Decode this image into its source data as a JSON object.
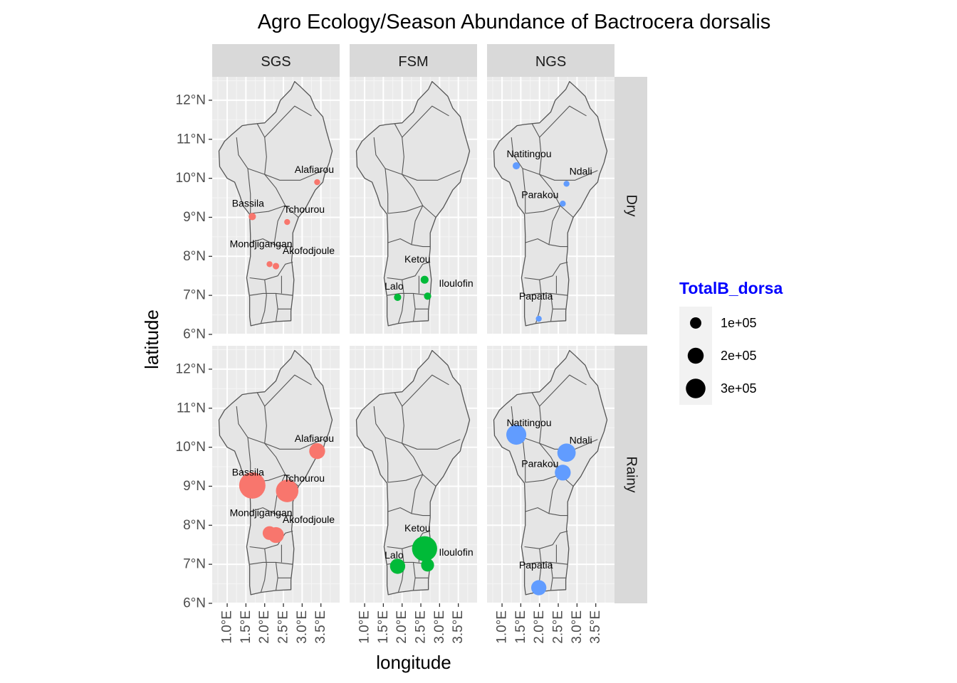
{
  "chart_data": {
    "type": "scatter",
    "title": "Agro Ecology/Season Abundance of Bactrocera dorsalis",
    "xlabel": "longitude",
    "ylabel": "latitude",
    "xlim": [
      0.6,
      4.0
    ],
    "ylim": [
      6.0,
      12.6
    ],
    "x_ticks": [
      1.0,
      1.5,
      2.0,
      2.5,
      3.0,
      3.5
    ],
    "x_tick_labels": [
      "1.0°E",
      "1.5°E",
      "2.0°E",
      "2.5°E",
      "3.0°E",
      "3.5°E"
    ],
    "y_ticks": [
      6,
      7,
      8,
      9,
      10,
      11,
      12
    ],
    "y_tick_labels": [
      "6°N",
      "7°N",
      "8°N",
      "9°N",
      "10°N",
      "11°N",
      "12°N"
    ],
    "columns": [
      "SGS",
      "FSM",
      "NGS"
    ],
    "rows": [
      "Dry",
      "Rainy"
    ],
    "colors": {
      "SGS": "#f8766d",
      "FSM": "#00ba38",
      "NGS": "#619cff"
    },
    "legend": {
      "title": "TotalB_dorsa",
      "placement": "right",
      "entries": [
        {
          "label": "1e+05",
          "value": 100000
        },
        {
          "label": "2e+05",
          "value": 200000
        },
        {
          "label": "3e+05",
          "value": 300000
        }
      ]
    },
    "panels": [
      {
        "column": "SGS",
        "row": "Dry",
        "points": [
          {
            "site": "Alafiarou",
            "lon": 3.4,
            "lat": 9.9,
            "total": 5000
          },
          {
            "site": "Bassila",
            "lon": 1.67,
            "lat": 9.02,
            "total": 25000
          },
          {
            "site": "Tchourou",
            "lon": 2.6,
            "lat": 8.88,
            "total": 10000
          },
          {
            "site": "Mondjigangan",
            "lon": 2.13,
            "lat": 7.8,
            "total": 4000
          },
          {
            "site": "Akofodjoule",
            "lon": 2.3,
            "lat": 7.75,
            "total": 20000
          }
        ]
      },
      {
        "column": "FSM",
        "row": "Dry",
        "points": [
          {
            "site": "Ketou",
            "lon": 2.6,
            "lat": 7.4,
            "total": 30000
          },
          {
            "site": "Lalo",
            "lon": 1.88,
            "lat": 6.95,
            "total": 25000
          },
          {
            "site": "Iloulofin",
            "lon": 2.68,
            "lat": 6.98,
            "total": 25000
          }
        ]
      },
      {
        "column": "NGS",
        "row": "Dry",
        "points": [
          {
            "site": "Natitingou",
            "lon": 1.38,
            "lat": 10.32,
            "total": 25000
          },
          {
            "site": "Ndali",
            "lon": 2.72,
            "lat": 9.86,
            "total": 15000
          },
          {
            "site": "Parakou",
            "lon": 2.62,
            "lat": 9.35,
            "total": 10000
          },
          {
            "site": "Papatia",
            "lon": 1.98,
            "lat": 6.4,
            "total": 6000
          }
        ]
      },
      {
        "column": "SGS",
        "row": "Rainy",
        "points": [
          {
            "site": "Alafiarou",
            "lon": 3.4,
            "lat": 9.9,
            "total": 120000
          },
          {
            "site": "Bassila",
            "lon": 1.67,
            "lat": 9.02,
            "total": 330000
          },
          {
            "site": "Tchourou",
            "lon": 2.6,
            "lat": 8.88,
            "total": 240000
          },
          {
            "site": "Mondjigangan",
            "lon": 2.13,
            "lat": 7.8,
            "total": 90000
          },
          {
            "site": "Akofodjoule",
            "lon": 2.3,
            "lat": 7.75,
            "total": 120000
          }
        ]
      },
      {
        "column": "FSM",
        "row": "Rainy",
        "points": [
          {
            "site": "Ketou",
            "lon": 2.6,
            "lat": 7.4,
            "total": 300000
          },
          {
            "site": "Lalo",
            "lon": 1.88,
            "lat": 6.95,
            "total": 110000
          },
          {
            "site": "Iloulofin",
            "lon": 2.68,
            "lat": 6.98,
            "total": 80000
          }
        ]
      },
      {
        "column": "NGS",
        "row": "Rainy",
        "points": [
          {
            "site": "Natitingou",
            "lon": 1.38,
            "lat": 10.32,
            "total": 190000
          },
          {
            "site": "Ndali",
            "lon": 2.72,
            "lat": 9.86,
            "total": 160000
          },
          {
            "site": "Parakou",
            "lon": 2.62,
            "lat": 9.35,
            "total": 120000
          },
          {
            "site": "Papatia",
            "lon": 1.98,
            "lat": 6.4,
            "total": 110000
          }
        ]
      }
    ]
  }
}
